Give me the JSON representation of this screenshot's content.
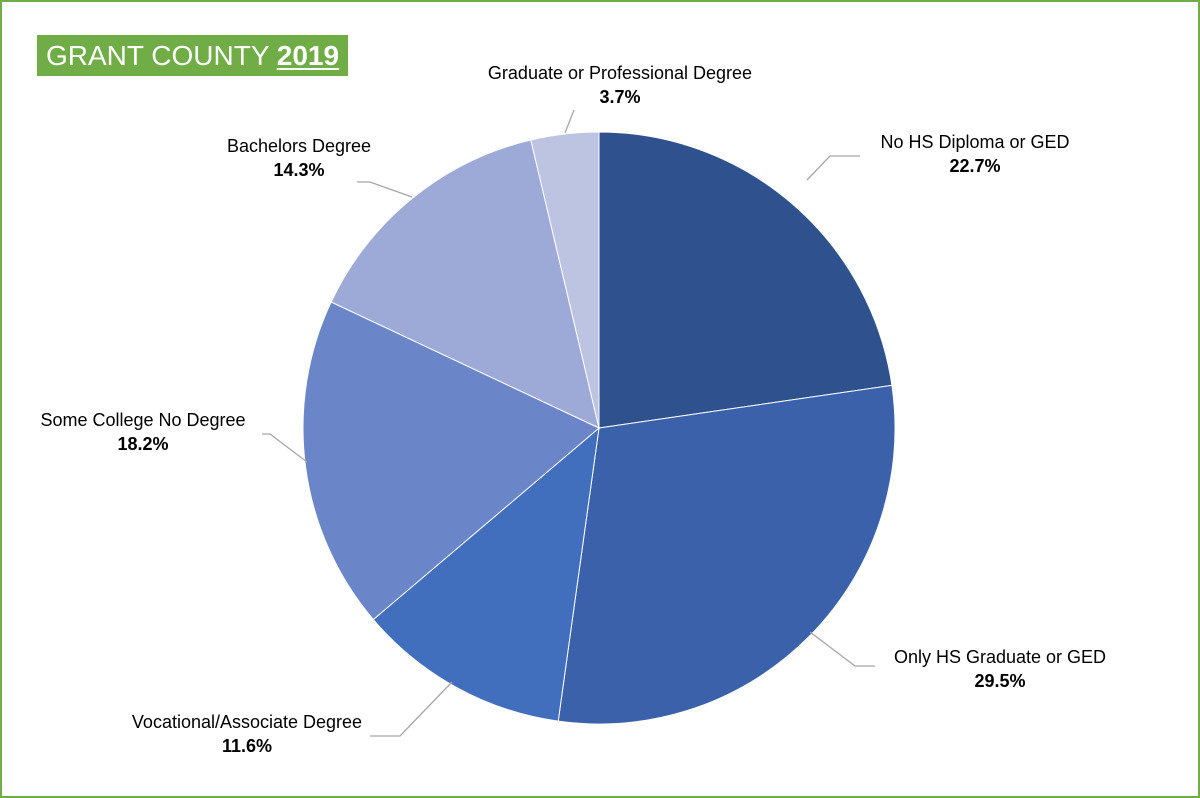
{
  "header": {
    "title_prefix": "GRANT COUNTY",
    "title_year": "2019",
    "badge_color": "#70ad47"
  },
  "chart_data": {
    "type": "pie",
    "title": "GRANT COUNTY 2019",
    "start_angle_deg": 0,
    "direction": "clockwise",
    "slices": [
      {
        "label": "No HS Diploma or GED",
        "value": 22.7,
        "display": "22.7%",
        "color": "#2f528f"
      },
      {
        "label": "Only HS Graduate or GED",
        "value": 29.5,
        "display": "29.5%",
        "color": "#3a61aa"
      },
      {
        "label": "Vocational/Associate Degree",
        "value": 11.6,
        "display": "11.6%",
        "color": "#416fbd"
      },
      {
        "label": "Some College No Degree",
        "value": 18.2,
        "display": "18.2%",
        "color": "#6a86c9"
      },
      {
        "label": "Bachelors Degree",
        "value": 14.3,
        "display": "14.3%",
        "color": "#9daad7"
      },
      {
        "label": "Graduate or Professional Degree",
        "value": 3.7,
        "display": "3.7%",
        "color": "#bcc4e2"
      }
    ],
    "legend": "none",
    "data_labels": "outside with leader lines"
  }
}
